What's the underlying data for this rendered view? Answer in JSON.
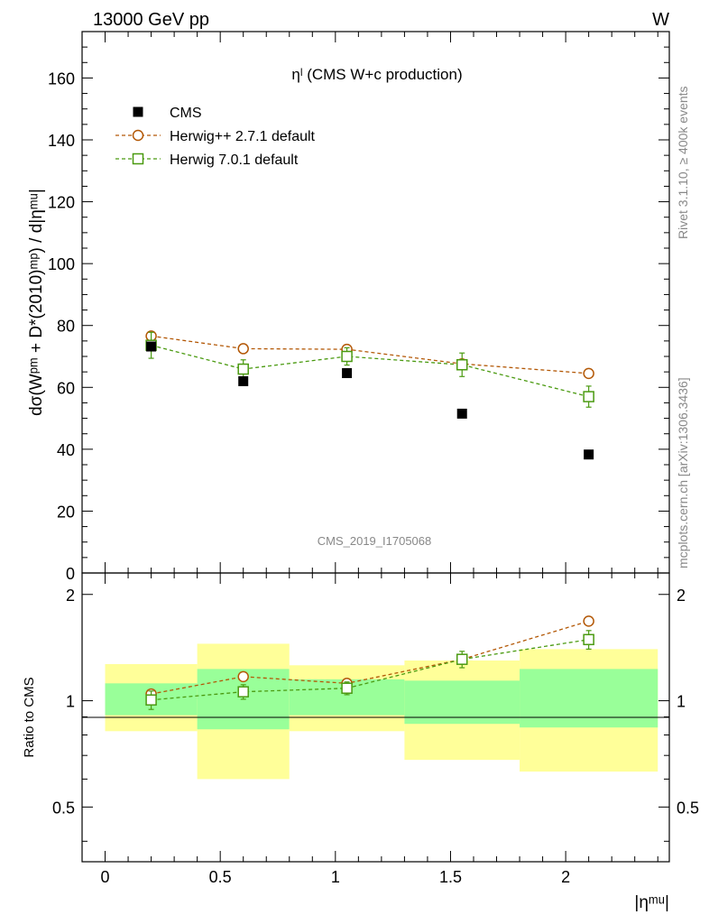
{
  "header": {
    "left": "13000 GeV pp",
    "right": "W"
  },
  "side_labels": {
    "rivet": "Rivet 3.1.10, ≥ 400k events",
    "mcplots": "mcplots.cern.ch [arXiv:1306.3436]"
  },
  "chart_data": [
    {
      "type": "scatter",
      "title": "ηˡ (CMS W+c production)",
      "watermark": "CMS_2019_I1705068",
      "ylabel": "dσ(Wᵖᵐ + D*(2010)ᵐᵖ) / d|ηᵐᵘ|",
      "ylim": [
        0,
        175
      ],
      "yticks": [
        0,
        20,
        40,
        60,
        80,
        100,
        120,
        140,
        160
      ],
      "xlim": [
        -0.1,
        2.45
      ],
      "legend_placement": "top-left",
      "series": [
        {
          "name": "CMS",
          "color": "#000000",
          "marker": "filled-square",
          "x": [
            0.2,
            0.6,
            1.05,
            1.55,
            2.1
          ],
          "y": [
            73.2,
            62.0,
            64.6,
            51.5,
            38.3
          ]
        },
        {
          "name": "Herwig++ 2.7.1 default",
          "color": "#b35806",
          "marker": "open-circle",
          "dashed": true,
          "x": [
            0.2,
            0.6,
            1.05,
            1.55,
            2.1
          ],
          "y": [
            76.6,
            72.5,
            72.3,
            67.6,
            64.5
          ],
          "err": [
            0.6,
            0.6,
            0.6,
            0.6,
            0.6
          ]
        },
        {
          "name": "Herwig 7.0.1 default",
          "color": "#4a9a10",
          "marker": "open-square",
          "dashed": true,
          "x": [
            0.2,
            0.6,
            1.05,
            1.55,
            2.1
          ],
          "y": [
            73.6,
            65.9,
            70.0,
            67.3,
            57.0
          ],
          "err": [
            4.2,
            3.0,
            2.8,
            3.8,
            3.4
          ]
        }
      ]
    },
    {
      "type": "scatter",
      "ylabel": "Ratio to CMS",
      "xlabel": "|ηᵐᵘ|",
      "ylim": [
        0.35,
        2.3
      ],
      "yscale": "log",
      "yticks": [
        0.5,
        1,
        2
      ],
      "xticks": [
        0,
        0.5,
        1,
        1.5,
        2
      ],
      "xlim": [
        -0.1,
        2.45
      ],
      "bands": [
        {
          "x0": 0.0,
          "x1": 0.4,
          "inner": [
            0.91,
            1.12
          ],
          "outer": [
            0.82,
            1.27
          ]
        },
        {
          "x0": 0.4,
          "x1": 0.8,
          "inner": [
            0.83,
            1.23
          ],
          "outer": [
            0.6,
            1.45
          ]
        },
        {
          "x0": 0.8,
          "x1": 1.3,
          "inner": [
            0.91,
            1.15
          ],
          "outer": [
            0.82,
            1.26
          ]
        },
        {
          "x0": 1.3,
          "x1": 1.8,
          "inner": [
            0.86,
            1.14
          ],
          "outer": [
            0.68,
            1.3
          ]
        },
        {
          "x0": 1.8,
          "x1": 2.4,
          "inner": [
            0.84,
            1.23
          ],
          "outer": [
            0.63,
            1.4
          ]
        }
      ],
      "series": [
        {
          "name": "Herwig++ 2.7.1 default",
          "color": "#b35806",
          "marker": "open-circle",
          "dashed": true,
          "x": [
            0.2,
            0.6,
            1.05,
            1.55,
            2.1
          ],
          "y": [
            1.045,
            1.17,
            1.12,
            1.31,
            1.68
          ],
          "err": [
            0.01,
            0.01,
            0.01,
            0.02,
            0.02
          ]
        },
        {
          "name": "Herwig 7.0.1 default",
          "color": "#4a9a10",
          "marker": "open-square",
          "dashed": true,
          "x": [
            0.2,
            0.6,
            1.05,
            1.55,
            2.1
          ],
          "y": [
            1.005,
            1.06,
            1.085,
            1.31,
            1.49
          ],
          "err": [
            0.06,
            0.05,
            0.045,
            0.07,
            0.09
          ]
        }
      ]
    }
  ]
}
